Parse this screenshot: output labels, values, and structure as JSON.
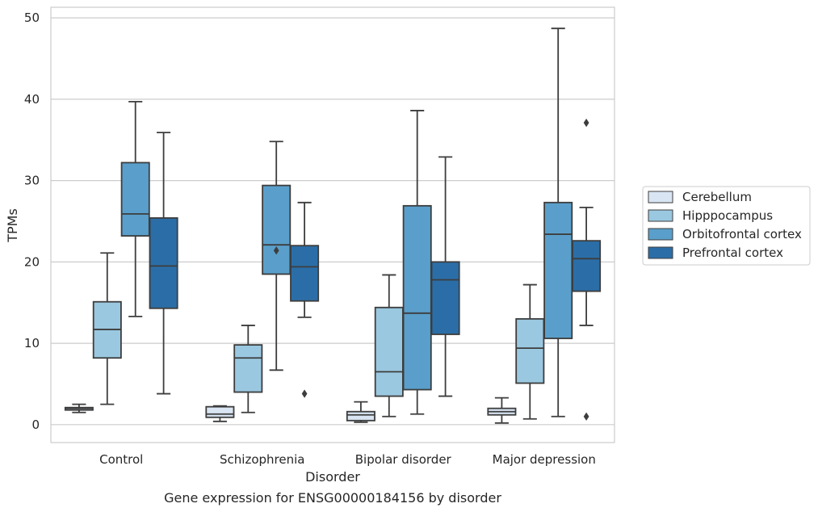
{
  "chart_data": {
    "type": "box",
    "xlabel": "Disorder",
    "ylabel": "TPMs",
    "caption": "Gene expression for ENSG00000184156 by disorder",
    "ylim": [
      -2.2,
      51.3
    ],
    "yticks": [
      0,
      10,
      20,
      30,
      40,
      50
    ],
    "grid": "horizontal",
    "legend_placement": "right",
    "categories": [
      "Control",
      "Schizophrenia",
      "Bipolar disorder",
      "Major depression"
    ],
    "series": [
      {
        "name": "Cerebellum",
        "color": "#d9e5f2",
        "boxes": [
          {
            "whislo": 1.5,
            "q1": 1.8,
            "med": 2.0,
            "q3": 2.1,
            "whishi": 2.5,
            "fliers": []
          },
          {
            "whislo": 0.4,
            "q1": 0.9,
            "med": 1.3,
            "q3": 2.2,
            "whishi": 2.3,
            "fliers": []
          },
          {
            "whislo": 0.3,
            "q1": 0.5,
            "med": 1.2,
            "q3": 1.6,
            "whishi": 2.8,
            "fliers": []
          },
          {
            "whislo": 0.2,
            "q1": 1.2,
            "med": 1.6,
            "q3": 2.0,
            "whishi": 3.3,
            "fliers": []
          }
        ]
      },
      {
        "name": "Hipppocampus",
        "color": "#9ac8e0",
        "boxes": [
          {
            "whislo": 2.5,
            "q1": 8.2,
            "med": 11.7,
            "q3": 15.1,
            "whishi": 21.1,
            "fliers": []
          },
          {
            "whislo": 1.5,
            "q1": 4.0,
            "med": 8.2,
            "q3": 9.8,
            "whishi": 12.2,
            "fliers": []
          },
          {
            "whislo": 1.0,
            "q1": 3.5,
            "med": 6.5,
            "q3": 14.4,
            "whishi": 18.4,
            "fliers": []
          },
          {
            "whislo": 0.7,
            "q1": 5.1,
            "med": 9.4,
            "q3": 13.0,
            "whishi": 17.2,
            "fliers": []
          }
        ]
      },
      {
        "name": "Orbitofrontal cortex",
        "color": "#5a9fcb",
        "boxes": [
          {
            "whislo": 13.3,
            "q1": 23.2,
            "med": 25.9,
            "q3": 32.2,
            "whishi": 39.7,
            "fliers": []
          },
          {
            "whislo": 6.7,
            "q1": 18.5,
            "med": 22.1,
            "q3": 29.4,
            "whishi": 34.8,
            "fliers": [
              21.4
            ]
          },
          {
            "whislo": 1.3,
            "q1": 4.3,
            "med": 13.7,
            "q3": 26.9,
            "whishi": 38.6,
            "fliers": []
          },
          {
            "whislo": 1.0,
            "q1": 10.6,
            "med": 23.4,
            "q3": 27.3,
            "whishi": 48.7,
            "fliers": []
          }
        ]
      },
      {
        "name": "Prefrontal cortex",
        "color": "#2b6ea7",
        "boxes": [
          {
            "whislo": 3.8,
            "q1": 14.3,
            "med": 19.5,
            "q3": 25.4,
            "whishi": 35.9,
            "fliers": []
          },
          {
            "whislo": 13.2,
            "q1": 15.2,
            "med": 19.4,
            "q3": 22.0,
            "whishi": 27.3,
            "fliers": [
              3.8
            ]
          },
          {
            "whislo": 3.5,
            "q1": 11.1,
            "med": 17.8,
            "q3": 20.0,
            "whishi": 32.9,
            "fliers": []
          },
          {
            "whislo": 12.2,
            "q1": 16.4,
            "med": 20.4,
            "q3": 22.6,
            "whishi": 26.7,
            "fliers": [
              37.1,
              1.0
            ]
          }
        ]
      }
    ]
  }
}
